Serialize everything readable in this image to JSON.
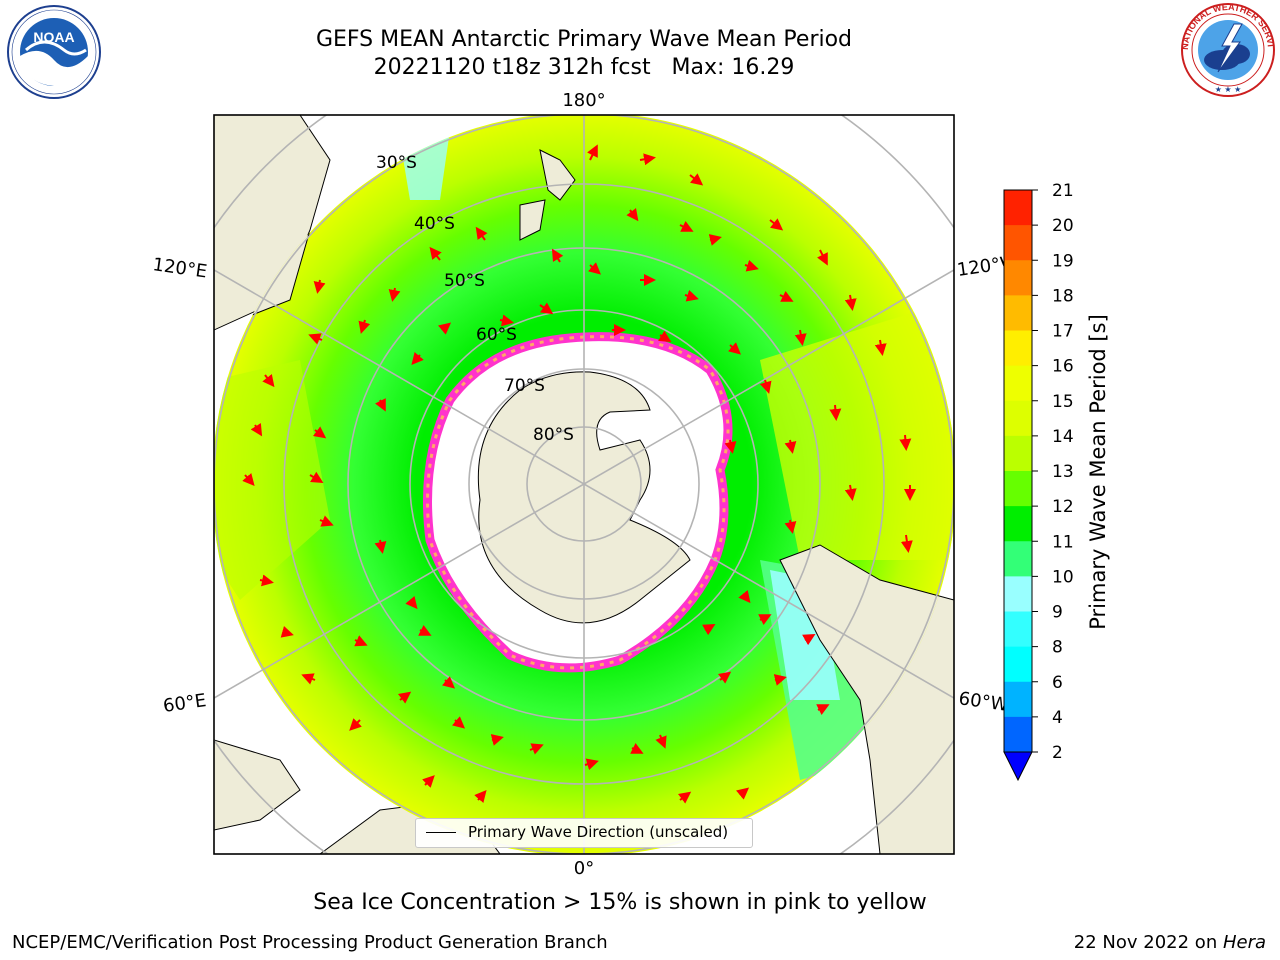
{
  "header": {
    "title_line_1": "GEFS MEAN Antarctic Primary Wave Mean Period",
    "title_line_2": "20221120 t18z 312h fcst   Max: 16.29"
  },
  "logos": {
    "left": {
      "name": "noaa-logo",
      "text": "NOAA",
      "ring_text": "NATIONAL OCEANIC AND ATMOSPHERIC ADMINISTRATION · U.S. DEPARTMENT OF COMMERCE"
    },
    "right": {
      "name": "nws-logo",
      "ring_text": "NATIONAL WEATHER SERVICE"
    }
  },
  "map": {
    "projection": "south-polar-stereographic",
    "lon_labels": {
      "top": "180°",
      "bottom": "0°",
      "upper_left": "120°E",
      "upper_right": "120°W",
      "lower_left": "60°E",
      "lower_right": "60°W"
    },
    "lat_labels": [
      "30°S",
      "40°S",
      "50°S",
      "60°S",
      "70°S",
      "80°S"
    ],
    "legend_label": "Primary Wave Direction (unscaled)",
    "colors": {
      "land": "#eeecd8",
      "ice": "#ffffff",
      "ice_edge": [
        "#ff33cc",
        "#ff9966",
        "#ffcc66"
      ],
      "arrow": "#ff0000",
      "grid": "#b4b4b4"
    }
  },
  "colorbar": {
    "title": "Primary Wave Mean Period [s]",
    "ticks": [
      "2",
      "4",
      "6",
      "8",
      "9",
      "10",
      "11",
      "12",
      "13",
      "14",
      "15",
      "16",
      "17",
      "18",
      "19",
      "20",
      "21"
    ],
    "colors": [
      "#0066ff",
      "#00b3ff",
      "#00ffff",
      "#33ffff",
      "#99ffff",
      "#33ff77",
      "#00ee00",
      "#66ff00",
      "#bbff00",
      "#ddff00",
      "#eeff00",
      "#ffee00",
      "#ffbb00",
      "#ff8800",
      "#ff5500",
      "#ff2200"
    ],
    "under_color": "#0000ff"
  },
  "notes": {
    "ice_note": "Sea Ice Concentration > 15% is shown in pink to yellow"
  },
  "footer": {
    "left": "NCEP/EMC/Verification Post Processing Product Generation Branch",
    "right_prefix": "22 Nov 2022 on ",
    "right_host": "Hera"
  }
}
